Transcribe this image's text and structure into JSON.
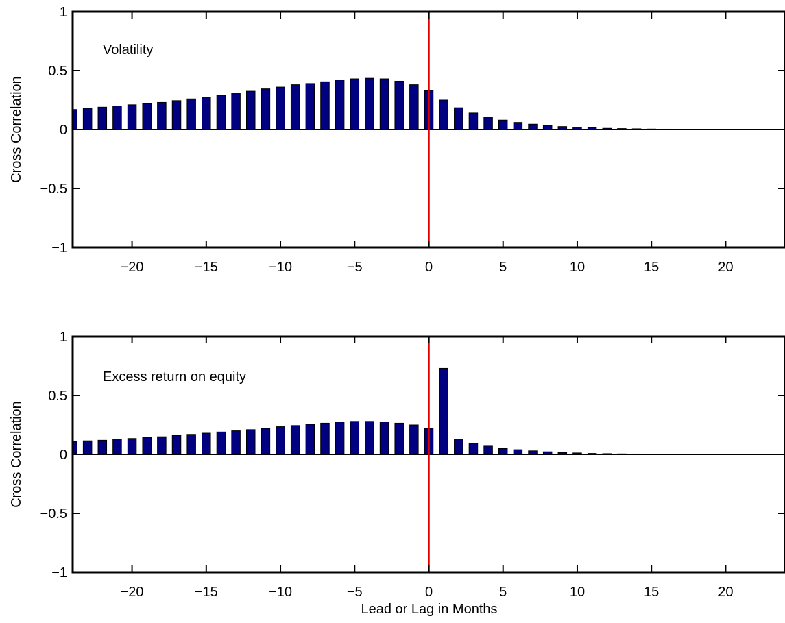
{
  "chart_data": [
    {
      "type": "bar",
      "annotation": "Volatility",
      "ylabel": "Cross Correlation",
      "xlabel": "",
      "xlim": [
        -24,
        24
      ],
      "ylim": [
        -1,
        1
      ],
      "xticks": [
        -20,
        -15,
        -10,
        -5,
        0,
        5,
        10,
        15,
        20
      ],
      "xtick_labels": [
        "−20",
        "−15",
        "−10",
        "−5",
        "0",
        "5",
        "10",
        "15",
        "20"
      ],
      "yticks": [
        -1,
        -0.5,
        0,
        0.5,
        1
      ],
      "ytick_labels": [
        "−1",
        "−0.5",
        "0",
        "0.5",
        "1"
      ],
      "reference_line": {
        "x": 0,
        "color": "#e00000"
      },
      "bar_color": "#000080",
      "x": [
        -24,
        -23,
        -22,
        -21,
        -20,
        -19,
        -18,
        -17,
        -16,
        -15,
        -14,
        -13,
        -12,
        -11,
        -10,
        -9,
        -8,
        -7,
        -6,
        -5,
        -4,
        -3,
        -2,
        -1,
        0,
        1,
        2,
        3,
        4,
        5,
        6,
        7,
        8,
        9,
        10,
        11,
        12,
        13,
        14,
        15,
        16,
        17,
        18,
        19,
        20,
        21,
        22,
        23,
        24
      ],
      "values": [
        0.17,
        0.18,
        0.19,
        0.2,
        0.21,
        0.22,
        0.23,
        0.245,
        0.26,
        0.275,
        0.29,
        0.31,
        0.325,
        0.345,
        0.36,
        0.38,
        0.39,
        0.405,
        0.42,
        0.43,
        0.435,
        0.43,
        0.41,
        0.38,
        0.33,
        0.25,
        0.185,
        0.14,
        0.105,
        0.08,
        0.06,
        0.045,
        0.035,
        0.025,
        0.02,
        0.015,
        0.01,
        0.008,
        0.006,
        0.004,
        0.003,
        0.002,
        0.002,
        0.001,
        0.001,
        0.001,
        0.001,
        0.001,
        0.001
      ]
    },
    {
      "type": "bar",
      "annotation": "Excess return on equity",
      "ylabel": "Cross Correlation",
      "xlabel": "Lead or Lag in Months",
      "xlim": [
        -24,
        24
      ],
      "ylim": [
        -1,
        1
      ],
      "xticks": [
        -20,
        -15,
        -10,
        -5,
        0,
        5,
        10,
        15,
        20
      ],
      "xtick_labels": [
        "−20",
        "−15",
        "−10",
        "−5",
        "0",
        "5",
        "10",
        "15",
        "20"
      ],
      "yticks": [
        -1,
        -0.5,
        0,
        0.5,
        1
      ],
      "ytick_labels": [
        "−1",
        "−0.5",
        "0",
        "0.5",
        "1"
      ],
      "reference_line": {
        "x": 0,
        "color": "#e00000"
      },
      "bar_color": "#000080",
      "x": [
        -24,
        -23,
        -22,
        -21,
        -20,
        -19,
        -18,
        -17,
        -16,
        -15,
        -14,
        -13,
        -12,
        -11,
        -10,
        -9,
        -8,
        -7,
        -6,
        -5,
        -4,
        -3,
        -2,
        -1,
        0,
        1,
        2,
        3,
        4,
        5,
        6,
        7,
        8,
        9,
        10,
        11,
        12,
        13,
        14,
        15,
        16,
        17,
        18,
        19,
        20,
        21,
        22,
        23,
        24
      ],
      "values": [
        0.11,
        0.115,
        0.12,
        0.13,
        0.135,
        0.145,
        0.15,
        0.16,
        0.17,
        0.18,
        0.19,
        0.2,
        0.21,
        0.22,
        0.235,
        0.245,
        0.255,
        0.265,
        0.275,
        0.28,
        0.28,
        0.275,
        0.265,
        0.25,
        0.22,
        0.73,
        0.13,
        0.095,
        0.07,
        0.05,
        0.04,
        0.03,
        0.022,
        0.016,
        0.012,
        0.008,
        0.006,
        0.004,
        0.003,
        0.002,
        0.002,
        0.001,
        0.001,
        0.001,
        0.001,
        0.001,
        0.001,
        0.001,
        0.001
      ]
    }
  ]
}
